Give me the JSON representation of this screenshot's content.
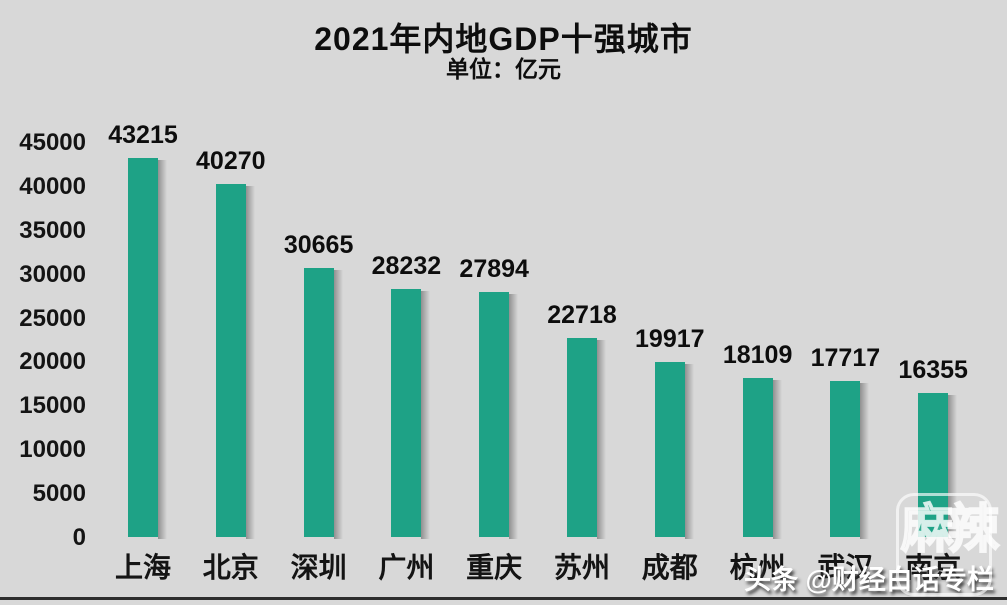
{
  "header": {
    "title": "2021年内地GDP十强城市",
    "subtitle": "单位：亿元"
  },
  "chart_data": {
    "type": "bar",
    "title": "2021年内地GDP十强城市",
    "subtitle": "单位：亿元",
    "unit": "亿元",
    "categories": [
      "上海",
      "北京",
      "深圳",
      "广州",
      "重庆",
      "苏州",
      "成都",
      "杭州",
      "武汉",
      "南京"
    ],
    "values": [
      43215,
      40270,
      30665,
      28232,
      27894,
      22718,
      19917,
      18109,
      17717,
      16355
    ],
    "ylim": [
      0,
      45000
    ],
    "ytick_step": 5000,
    "ytick_labels": [
      "0",
      "5000",
      "10000",
      "15000",
      "20000",
      "25000",
      "30000",
      "35000",
      "40000",
      "45000"
    ],
    "grid": false,
    "legend": "none",
    "data_labels": true,
    "bar_color": "#1ea286",
    "background_color": "#d8d8d8",
    "text_color": "#0d0d0d"
  },
  "watermarks": {
    "toutiao": "头条 @财经白话专栏",
    "stamp": "麻辣"
  }
}
